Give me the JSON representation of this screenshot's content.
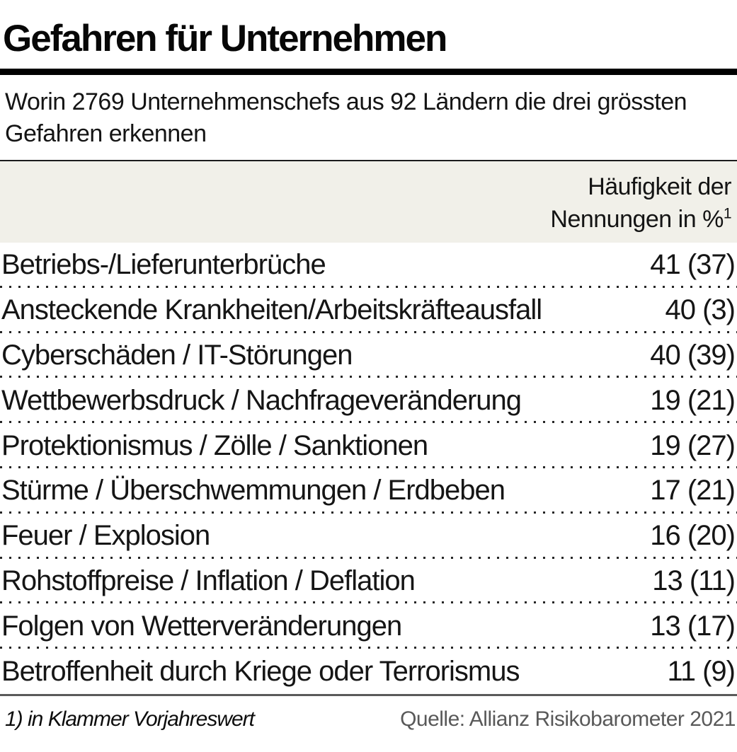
{
  "title": "Gefahren für Unternehmen",
  "subtitle": "Worin 2769 Unternehmenschefs aus 92 Ländern die drei grössten Gefahren erkennen",
  "column_header": {
    "line1": "Häufigkeit der",
    "line2": "Nennungen in %",
    "superscript": "1"
  },
  "chart_data": {
    "type": "table",
    "title": "Gefahren für Unternehmen",
    "subtitle": "Worin 2769 Unternehmenschefs aus 92 Ländern die drei grössten Gefahren erkennen",
    "value_column_header": "Häufigkeit der Nennungen in %¹",
    "unit": "%",
    "respondents": 2769,
    "countries": 92,
    "note": "1) in Klammer Vorjahreswert",
    "source": "Quelle: Allianz Risikobarometer 2021",
    "rows": [
      {
        "label": "Betriebs-/Lieferunterbrüche",
        "value": 41,
        "previous_year": 37,
        "display": "41 (37)"
      },
      {
        "label": "Ansteckende Krankheiten/Arbeitskräfteausfall",
        "value": 40,
        "previous_year": 3,
        "display": "40 (3)"
      },
      {
        "label": "Cyberschäden / IT-Störungen",
        "value": 40,
        "previous_year": 39,
        "display": "40 (39)"
      },
      {
        "label": "Wettbewerbsdruck / Nachfrageveränderung",
        "value": 19,
        "previous_year": 21,
        "display": "19 (21)"
      },
      {
        "label": "Protektionismus / Zölle / Sanktionen",
        "value": 19,
        "previous_year": 27,
        "display": "19 (27)"
      },
      {
        "label": "Stürme / Überschwemmungen / Erdbeben",
        "value": 17,
        "previous_year": 21,
        "display": "17 (21)"
      },
      {
        "label": "Feuer / Explosion",
        "value": 16,
        "previous_year": 20,
        "display": "16 (20)"
      },
      {
        "label": "Rohstoffpreise / Inflation / Deflation",
        "value": 13,
        "previous_year": 11,
        "display": "13 (11)"
      },
      {
        "label": "Folgen von Wetterveränderungen",
        "value": 13,
        "previous_year": 17,
        "display": "13 (17)"
      },
      {
        "label": "Betroffenheit durch Kriege oder Terrorismus",
        "value": 11,
        "previous_year": 9,
        "display": "11 (9)"
      }
    ]
  },
  "footer": {
    "note": "1) in Klammer Vorjahreswert",
    "source": "Quelle: Allianz Risikobarometer 2021"
  },
  "colors": {
    "header_band_bg": "#f1f0e9",
    "text": "#1a1a1a",
    "source_text": "#595959",
    "title_rule": "#000000",
    "bottom_rule": "#5a5a5a"
  }
}
